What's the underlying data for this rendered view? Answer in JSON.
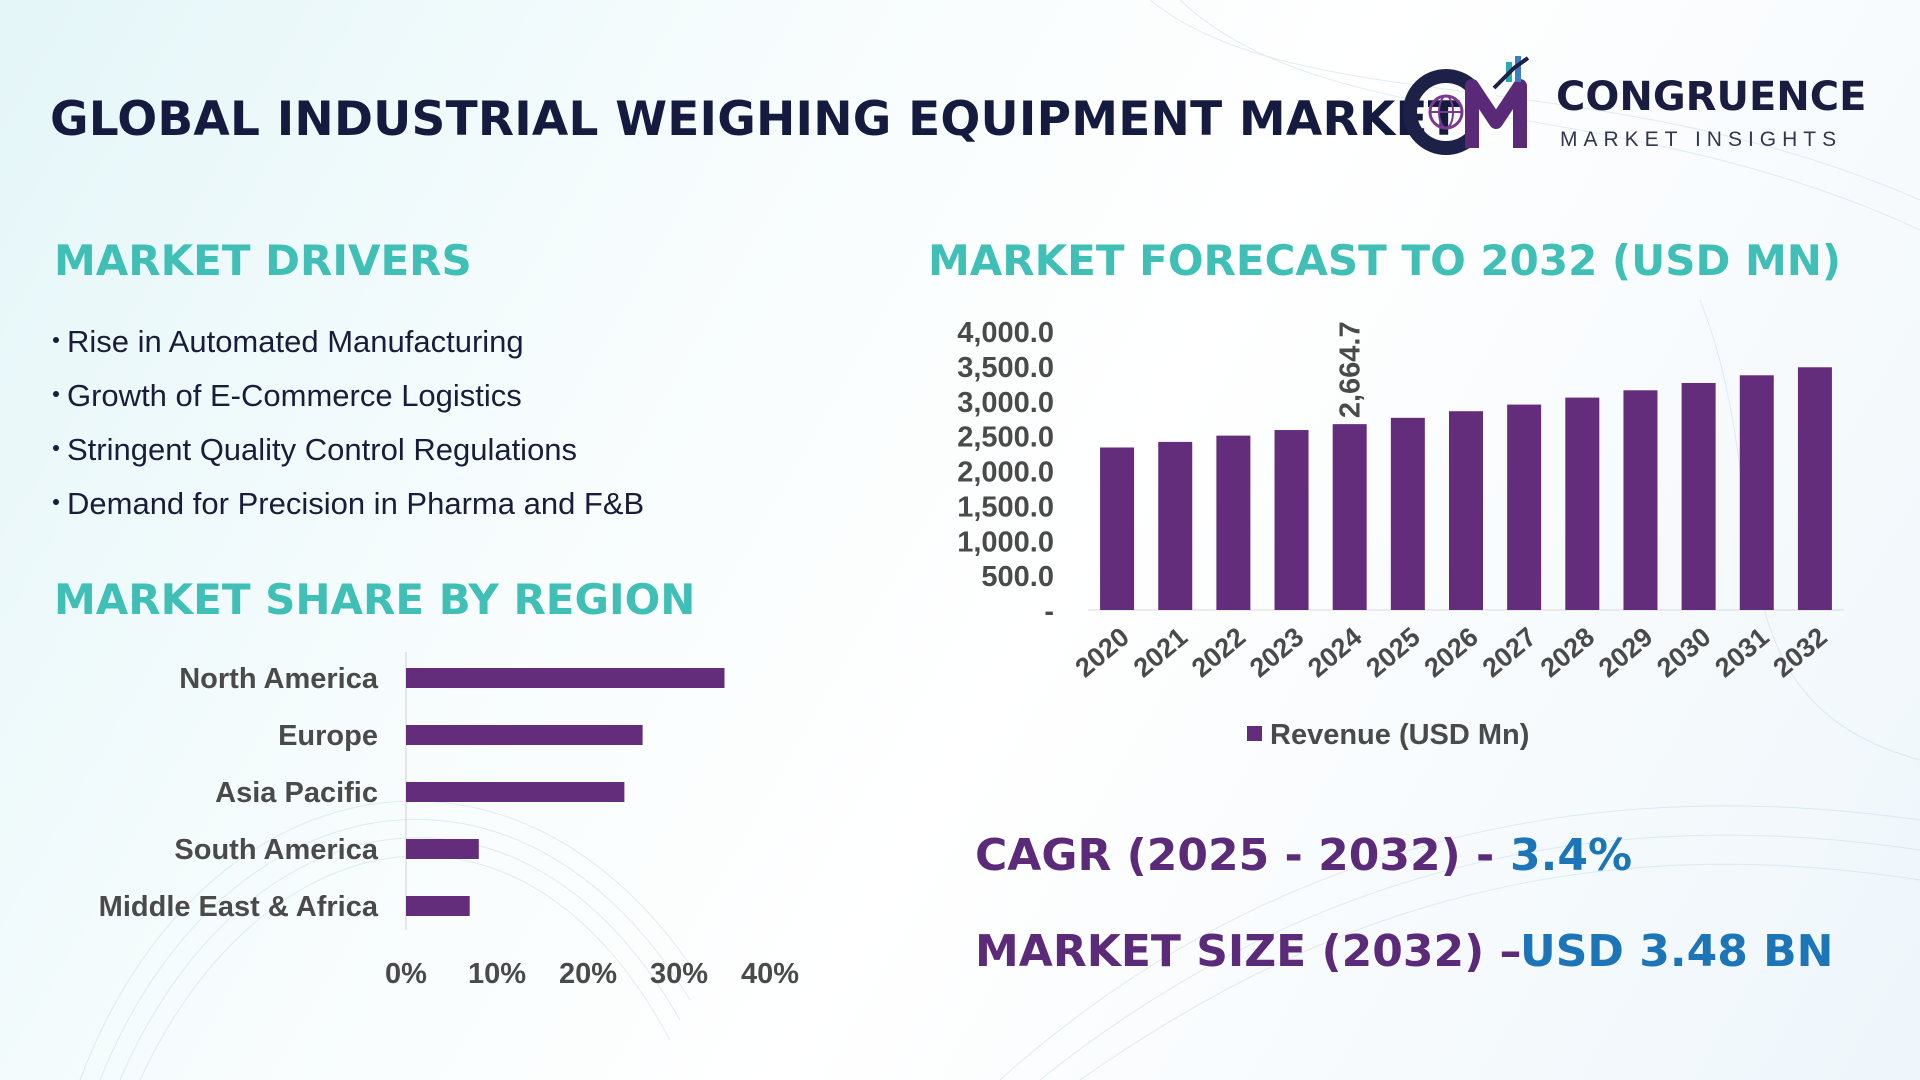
{
  "header": {
    "title": "GLOBAL INDUSTRIAL WEIGHING EQUIPMENT MARKET",
    "brand_name": "CONGRUENCE",
    "brand_sub": "MARKET INSIGHTS"
  },
  "colors": {
    "heading": "#3fbfb5",
    "bar": "#642d7c",
    "title": "#141b3f",
    "cagr_label": "#5b2a78",
    "value_blue": "#1c75b6"
  },
  "drivers": {
    "heading": "MARKET DRIVERS",
    "items": [
      "Rise in Automated Manufacturing",
      "Growth of E-Commerce Logistics",
      "Stringent Quality Control Regulations",
      "Demand for Precision in Pharma and F&B"
    ]
  },
  "share": {
    "heading": "MARKET SHARE BY REGION"
  },
  "forecast": {
    "heading": "MARKET FORECAST TO 2032 (USD MN)"
  },
  "stats": {
    "cagr_label": "CAGR (2025 - 2032) -",
    "cagr_value": "3.4%",
    "size_label": "MARKET SIZE (2032) –",
    "size_value": "USD 3.48 BN"
  },
  "chart_data": [
    {
      "type": "bar",
      "orientation": "horizontal",
      "categories": [
        "North America",
        "Europe",
        "Asia Pacific",
        "South America",
        "Middle East & Africa"
      ],
      "values": [
        35,
        26,
        24,
        8,
        7
      ],
      "xlim": [
        0,
        40
      ],
      "x_ticks": [
        "0%",
        "10%",
        "20%",
        "30%",
        "40%"
      ],
      "grid": false
    },
    {
      "type": "bar",
      "categories": [
        "2020",
        "2021",
        "2022",
        "2023",
        "2024",
        "2025",
        "2026",
        "2027",
        "2028",
        "2029",
        "2030",
        "2031",
        "2032"
      ],
      "series": [
        {
          "name": "Revenue (USD Mn)",
          "values": [
            2330,
            2410,
            2500,
            2580,
            2664.7,
            2755,
            2850,
            2945,
            3045,
            3150,
            3255,
            3365,
            3480
          ]
        }
      ],
      "ylim": [
        0,
        4000
      ],
      "y_ticks": [
        "-",
        "500.0",
        "1,000.0",
        "1,500.0",
        "2,000.0",
        "2,500.0",
        "3,000.0",
        "3,500.0",
        "4,000.0"
      ],
      "data_labels": [
        {
          "category": "2024",
          "text": "2,664.7"
        }
      ],
      "legend": "bottom",
      "grid": false
    }
  ]
}
